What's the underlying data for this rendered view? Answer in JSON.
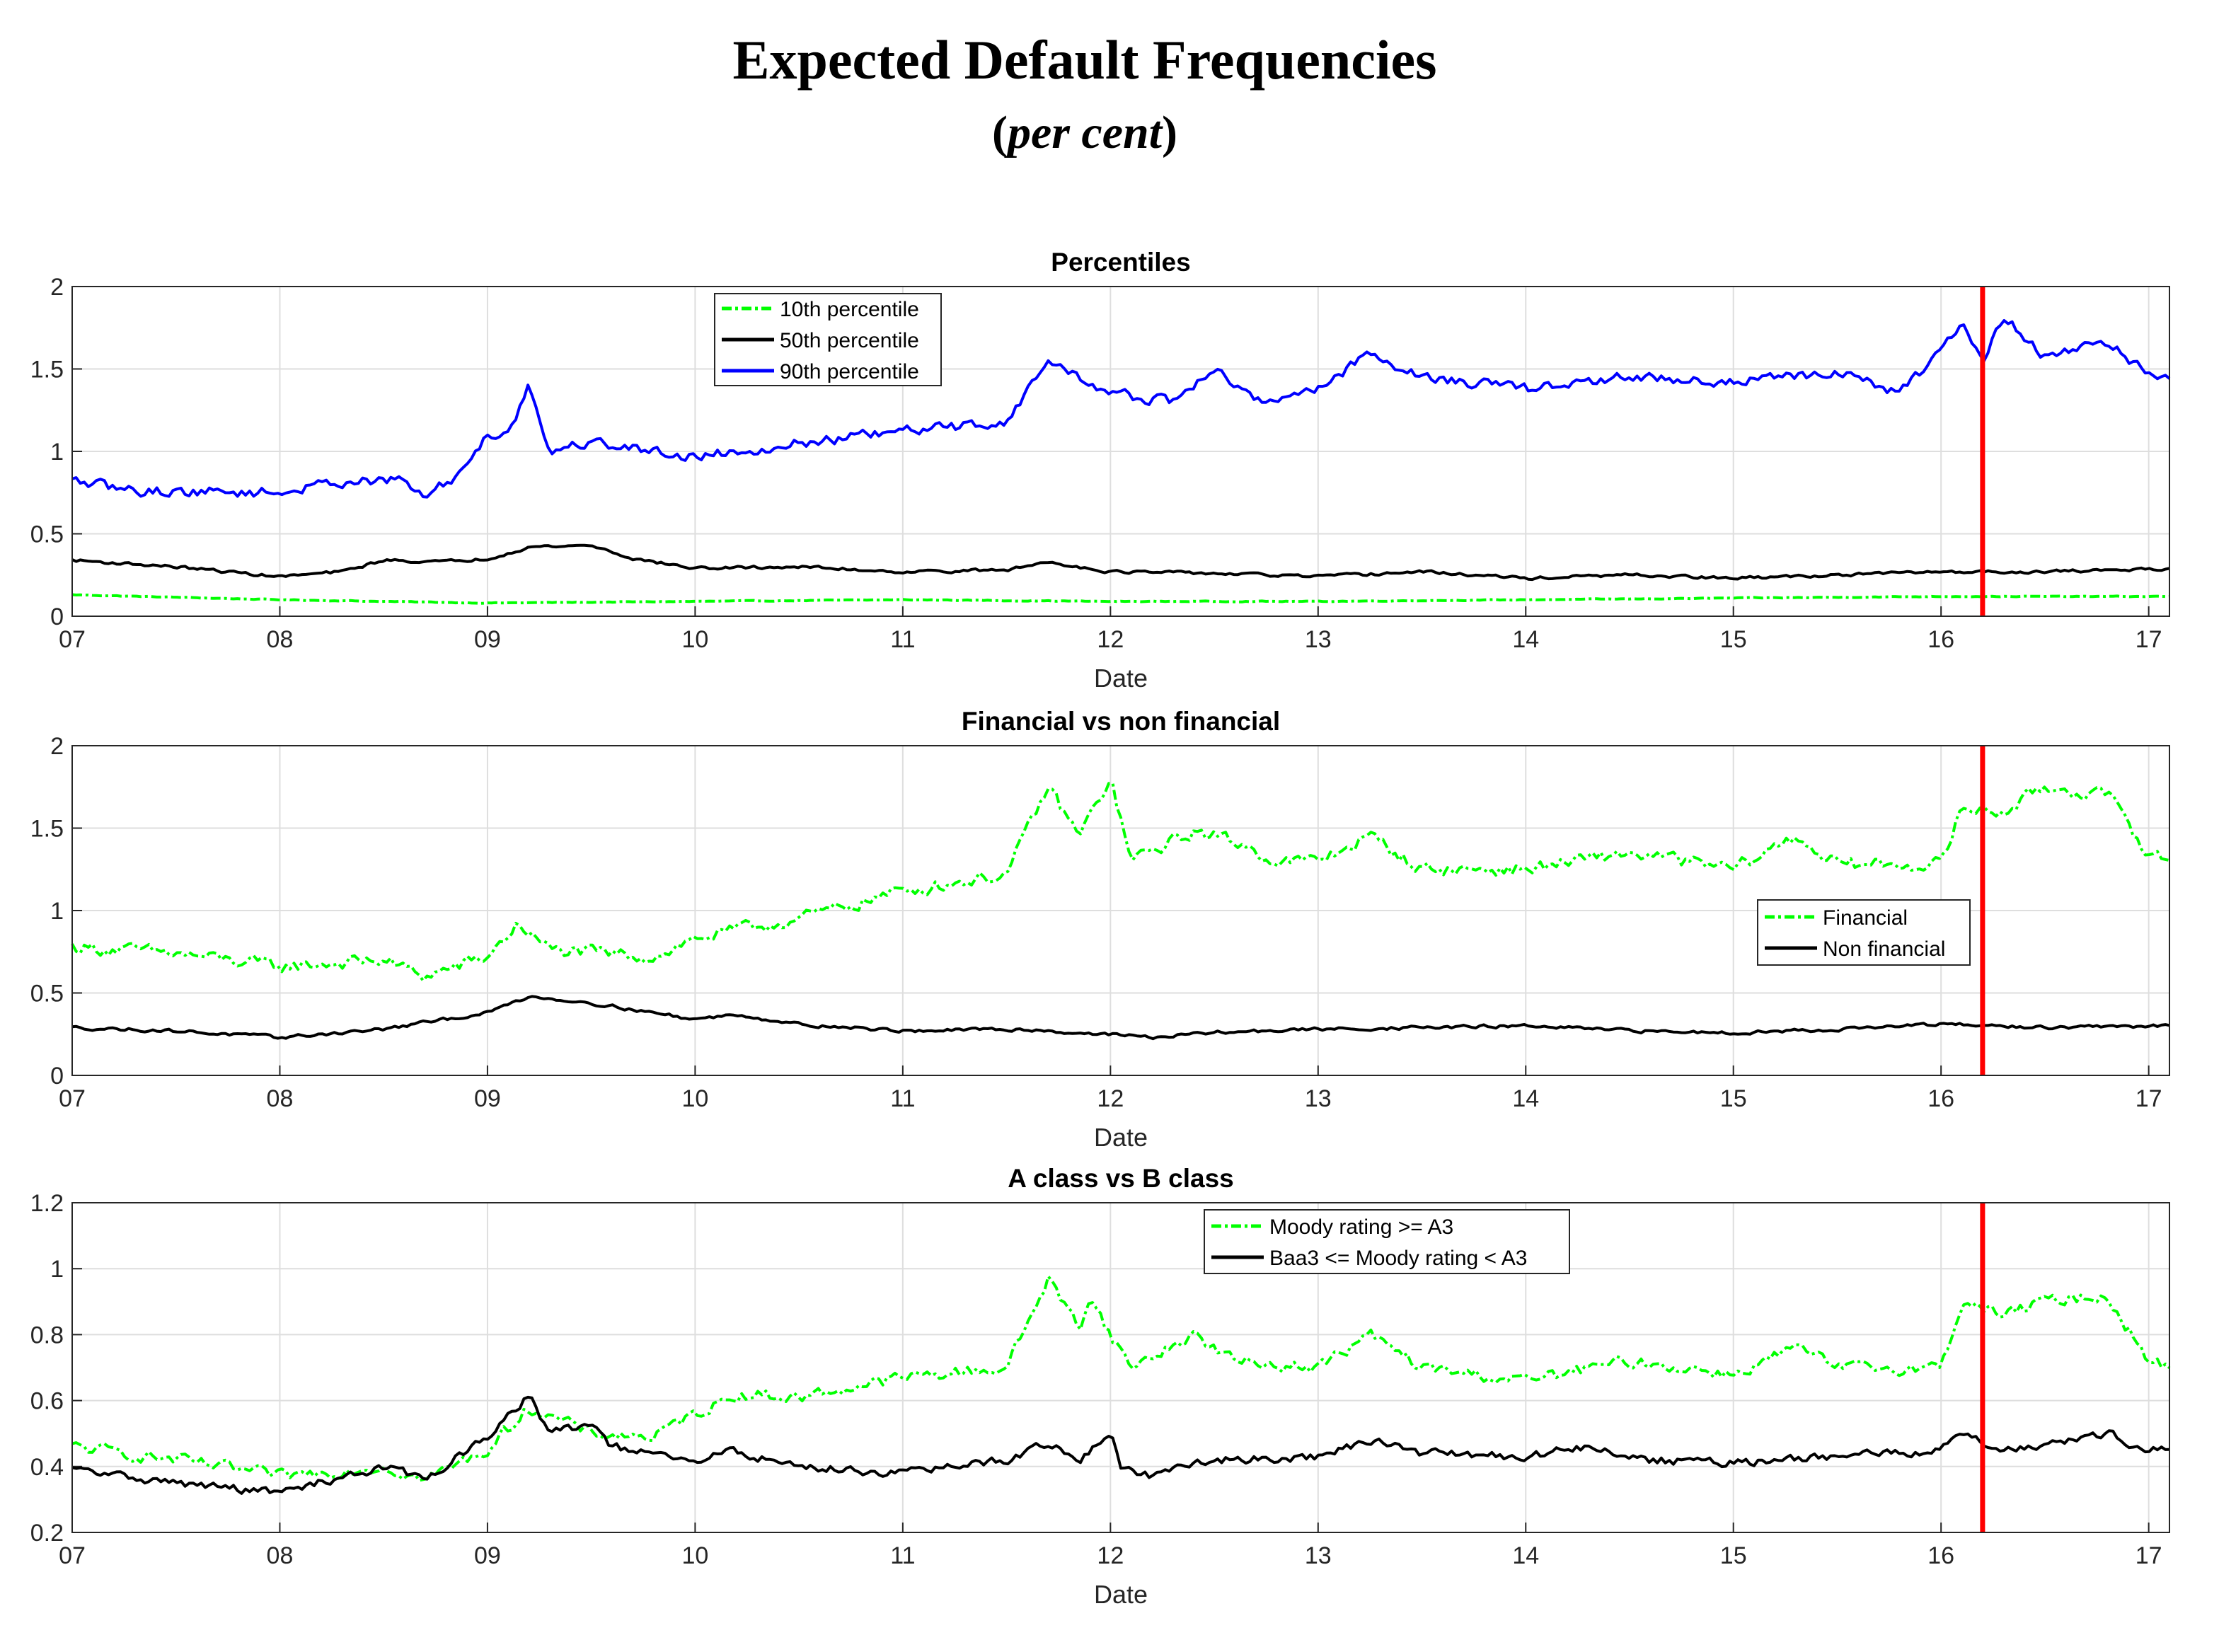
{
  "title": "Expected Default Frequencies",
  "subtitle_open": "(",
  "subtitle_italic": "per cent",
  "subtitle_close": ")",
  "colors": {
    "green": "#00ff00",
    "black": "#000000",
    "blue": "#0000ff",
    "red": "#ff0000",
    "grid": "#dedede",
    "axis": "#262626"
  },
  "chart_data": [
    {
      "type": "line",
      "title": "Percentiles",
      "xlabel": "Date",
      "ylabel": "",
      "xlim": [
        7,
        17.1
      ],
      "ylim": [
        0,
        2
      ],
      "xticks": [
        "07",
        "08",
        "09",
        "10",
        "11",
        "12",
        "13",
        "14",
        "15",
        "16",
        "17"
      ],
      "yticks": [
        "0",
        "0.5",
        "1",
        "1.5",
        "2"
      ],
      "yticks_values": [
        0,
        0.5,
        1,
        1.5,
        2
      ],
      "legend_position": "top-center",
      "vline": 16.2,
      "series": [
        {
          "name": "10th percentile",
          "color": "#00ff00",
          "style": "dashdot",
          "noise": 0.002,
          "points": [
            [
              7,
              0.13
            ],
            [
              8,
              0.1
            ],
            [
              9,
              0.08
            ],
            [
              10,
              0.09
            ],
            [
              11,
              0.1
            ],
            [
              12,
              0.09
            ],
            [
              13,
              0.09
            ],
            [
              14,
              0.1
            ],
            [
              15,
              0.11
            ],
            [
              16,
              0.12
            ],
            [
              17.1,
              0.12
            ]
          ]
        },
        {
          "name": "50th percentile",
          "color": "#000000",
          "style": "solid",
          "noise": 0.008,
          "points": [
            [
              7,
              0.34
            ],
            [
              7.5,
              0.3
            ],
            [
              8,
              0.24
            ],
            [
              8.3,
              0.27
            ],
            [
              8.5,
              0.34
            ],
            [
              8.8,
              0.33
            ],
            [
              9,
              0.35
            ],
            [
              9.2,
              0.42
            ],
            [
              9.5,
              0.43
            ],
            [
              9.7,
              0.35
            ],
            [
              10,
              0.29
            ],
            [
              10.5,
              0.3
            ],
            [
              11,
              0.27
            ],
            [
              11.5,
              0.28
            ],
            [
              11.7,
              0.33
            ],
            [
              12,
              0.27
            ],
            [
              12.5,
              0.26
            ],
            [
              13,
              0.24
            ],
            [
              13.5,
              0.27
            ],
            [
              14,
              0.23
            ],
            [
              14.5,
              0.25
            ],
            [
              15,
              0.23
            ],
            [
              15.5,
              0.25
            ],
            [
              16,
              0.27
            ],
            [
              16.5,
              0.27
            ],
            [
              17.1,
              0.29
            ]
          ]
        },
        {
          "name": "90th percentile",
          "color": "#0000ff",
          "style": "solid",
          "noise": 0.028,
          "points": [
            [
              7,
              0.82
            ],
            [
              7.3,
              0.76
            ],
            [
              8,
              0.75
            ],
            [
              8.3,
              0.82
            ],
            [
              8.6,
              0.82
            ],
            [
              8.7,
              0.72
            ],
            [
              8.85,
              0.85
            ],
            [
              9.0,
              1.1
            ],
            [
              9.1,
              1.12
            ],
            [
              9.2,
              1.4
            ],
            [
              9.3,
              1.0
            ],
            [
              9.5,
              1.06
            ],
            [
              9.8,
              1.0
            ],
            [
              10,
              0.97
            ],
            [
              10.5,
              1.05
            ],
            [
              11,
              1.12
            ],
            [
              11.5,
              1.18
            ],
            [
              11.7,
              1.55
            ],
            [
              12,
              1.35
            ],
            [
              12.3,
              1.3
            ],
            [
              12.5,
              1.5
            ],
            [
              12.7,
              1.3
            ],
            [
              13,
              1.38
            ],
            [
              13.25,
              1.6
            ],
            [
              13.5,
              1.45
            ],
            [
              14,
              1.38
            ],
            [
              14.5,
              1.45
            ],
            [
              15,
              1.42
            ],
            [
              15.5,
              1.48
            ],
            [
              15.8,
              1.35
            ],
            [
              16.1,
              1.75
            ],
            [
              16.2,
              1.55
            ],
            [
              16.3,
              1.82
            ],
            [
              16.5,
              1.58
            ],
            [
              16.8,
              1.66
            ],
            [
              17,
              1.47
            ],
            [
              17.1,
              1.43
            ]
          ]
        }
      ]
    },
    {
      "type": "line",
      "title": "Financial vs non financial",
      "xlabel": "Date",
      "ylabel": "",
      "xlim": [
        7,
        17.1
      ],
      "ylim": [
        0,
        2
      ],
      "xticks": [
        "07",
        "08",
        "09",
        "10",
        "11",
        "12",
        "13",
        "14",
        "15",
        "16",
        "17"
      ],
      "yticks": [
        "0",
        "0.5",
        "1",
        "1.5",
        "2"
      ],
      "yticks_values": [
        0,
        0.5,
        1,
        1.5,
        2
      ],
      "legend_position": "middle-right",
      "vline": 16.2,
      "series": [
        {
          "name": "Financial",
          "color": "#00ff00",
          "style": "dashdot",
          "noise": 0.035,
          "points": [
            [
              7,
              0.78
            ],
            [
              7.5,
              0.74
            ],
            [
              8,
              0.66
            ],
            [
              8.5,
              0.7
            ],
            [
              8.7,
              0.6
            ],
            [
              9,
              0.72
            ],
            [
              9.15,
              0.92
            ],
            [
              9.3,
              0.76
            ],
            [
              9.8,
              0.72
            ],
            [
              10,
              0.83
            ],
            [
              10.5,
              0.95
            ],
            [
              11,
              1.12
            ],
            [
              11.5,
              1.22
            ],
            [
              11.7,
              1.75
            ],
            [
              11.85,
              1.45
            ],
            [
              12,
              1.8
            ],
            [
              12.1,
              1.3
            ],
            [
              12.4,
              1.48
            ],
            [
              12.6,
              1.42
            ],
            [
              12.8,
              1.3
            ],
            [
              13,
              1.3
            ],
            [
              13.25,
              1.45
            ],
            [
              13.5,
              1.25
            ],
            [
              14,
              1.25
            ],
            [
              14.5,
              1.35
            ],
            [
              15,
              1.25
            ],
            [
              15.3,
              1.45
            ],
            [
              15.5,
              1.28
            ],
            [
              16,
              1.28
            ],
            [
              16.1,
              1.62
            ],
            [
              16.3,
              1.6
            ],
            [
              16.5,
              1.75
            ],
            [
              16.8,
              1.7
            ],
            [
              17,
              1.35
            ],
            [
              17.1,
              1.3
            ]
          ]
        },
        {
          "name": "Non financial",
          "color": "#000000",
          "style": "solid",
          "noise": 0.009,
          "points": [
            [
              7,
              0.29
            ],
            [
              7.5,
              0.27
            ],
            [
              8,
              0.23
            ],
            [
              8.5,
              0.28
            ],
            [
              8.8,
              0.34
            ],
            [
              9,
              0.38
            ],
            [
              9.2,
              0.48
            ],
            [
              9.5,
              0.44
            ],
            [
              10,
              0.34
            ],
            [
              10.2,
              0.37
            ],
            [
              10.5,
              0.31
            ],
            [
              11,
              0.27
            ],
            [
              11.6,
              0.28
            ],
            [
              11.8,
              0.26
            ],
            [
              12,
              0.25
            ],
            [
              12.2,
              0.23
            ],
            [
              12.5,
              0.26
            ],
            [
              13,
              0.28
            ],
            [
              13.5,
              0.29
            ],
            [
              14,
              0.3
            ],
            [
              14.5,
              0.27
            ],
            [
              15,
              0.26
            ],
            [
              15.5,
              0.28
            ],
            [
              16,
              0.31
            ],
            [
              16.5,
              0.29
            ],
            [
              17.1,
              0.3
            ]
          ]
        }
      ]
    },
    {
      "type": "line",
      "title": "A class vs B class",
      "xlabel": "Date",
      "ylabel": "",
      "xlim": [
        7,
        17.1
      ],
      "ylim": [
        0.2,
        1.2
      ],
      "xticks": [
        "07",
        "08",
        "09",
        "10",
        "11",
        "12",
        "13",
        "14",
        "15",
        "16",
        "17"
      ],
      "yticks": [
        "0.2",
        "0.4",
        "0.6",
        "0.8",
        "1",
        "1.2"
      ],
      "yticks_values": [
        0.2,
        0.4,
        0.6,
        0.8,
        1.0,
        1.2
      ],
      "legend_position": "top-center",
      "vline": 16.2,
      "series": [
        {
          "name": "Moody rating >= A3",
          "color": "#00ff00",
          "style": "dashdot",
          "noise": 0.016,
          "points": [
            [
              7,
              0.46
            ],
            [
              7.5,
              0.42
            ],
            [
              8,
              0.37
            ],
            [
              8.5,
              0.4
            ],
            [
              8.7,
              0.36
            ],
            [
              9,
              0.45
            ],
            [
              9.2,
              0.58
            ],
            [
              9.5,
              0.5
            ],
            [
              9.8,
              0.49
            ],
            [
              10,
              0.56
            ],
            [
              10.2,
              0.62
            ],
            [
              10.5,
              0.61
            ],
            [
              11,
              0.67
            ],
            [
              11.5,
              0.7
            ],
            [
              11.7,
              0.97
            ],
            [
              11.85,
              0.82
            ],
            [
              11.9,
              0.92
            ],
            [
              12,
              0.8
            ],
            [
              12.1,
              0.7
            ],
            [
              12.4,
              0.8
            ],
            [
              12.6,
              0.72
            ],
            [
              13,
              0.7
            ],
            [
              13.25,
              0.8
            ],
            [
              13.5,
              0.7
            ],
            [
              14,
              0.66
            ],
            [
              14.5,
              0.72
            ],
            [
              15,
              0.68
            ],
            [
              15.3,
              0.76
            ],
            [
              15.5,
              0.7
            ],
            [
              16,
              0.7
            ],
            [
              16.1,
              0.9
            ],
            [
              16.3,
              0.86
            ],
            [
              16.5,
              0.9
            ],
            [
              16.8,
              0.92
            ],
            [
              17,
              0.72
            ],
            [
              17.1,
              0.7
            ]
          ]
        },
        {
          "name": "Baa3 <= Moody rating < A3",
          "color": "#000000",
          "style": "solid",
          "noise": 0.011,
          "points": [
            [
              7,
              0.39
            ],
            [
              7.5,
              0.35
            ],
            [
              8,
              0.32
            ],
            [
              8.5,
              0.4
            ],
            [
              8.7,
              0.36
            ],
            [
              8.9,
              0.45
            ],
            [
              9,
              0.48
            ],
            [
              9.2,
              0.62
            ],
            [
              9.3,
              0.5
            ],
            [
              9.5,
              0.53
            ],
            [
              9.6,
              0.46
            ],
            [
              10,
              0.41
            ],
            [
              10.15,
              0.45
            ],
            [
              10.5,
              0.4
            ],
            [
              11,
              0.38
            ],
            [
              11.5,
              0.42
            ],
            [
              11.7,
              0.47
            ],
            [
              11.85,
              0.42
            ],
            [
              12,
              0.5
            ],
            [
              12.05,
              0.4
            ],
            [
              12.2,
              0.37
            ],
            [
              12.5,
              0.42
            ],
            [
              13,
              0.43
            ],
            [
              13.25,
              0.48
            ],
            [
              13.5,
              0.44
            ],
            [
              14,
              0.43
            ],
            [
              14.3,
              0.46
            ],
            [
              14.6,
              0.42
            ],
            [
              15,
              0.41
            ],
            [
              15.5,
              0.43
            ],
            [
              16,
              0.45
            ],
            [
              16.1,
              0.5
            ],
            [
              16.3,
              0.45
            ],
            [
              16.5,
              0.47
            ],
            [
              16.8,
              0.5
            ],
            [
              17,
              0.45
            ],
            [
              17.1,
              0.46
            ]
          ]
        }
      ]
    }
  ]
}
